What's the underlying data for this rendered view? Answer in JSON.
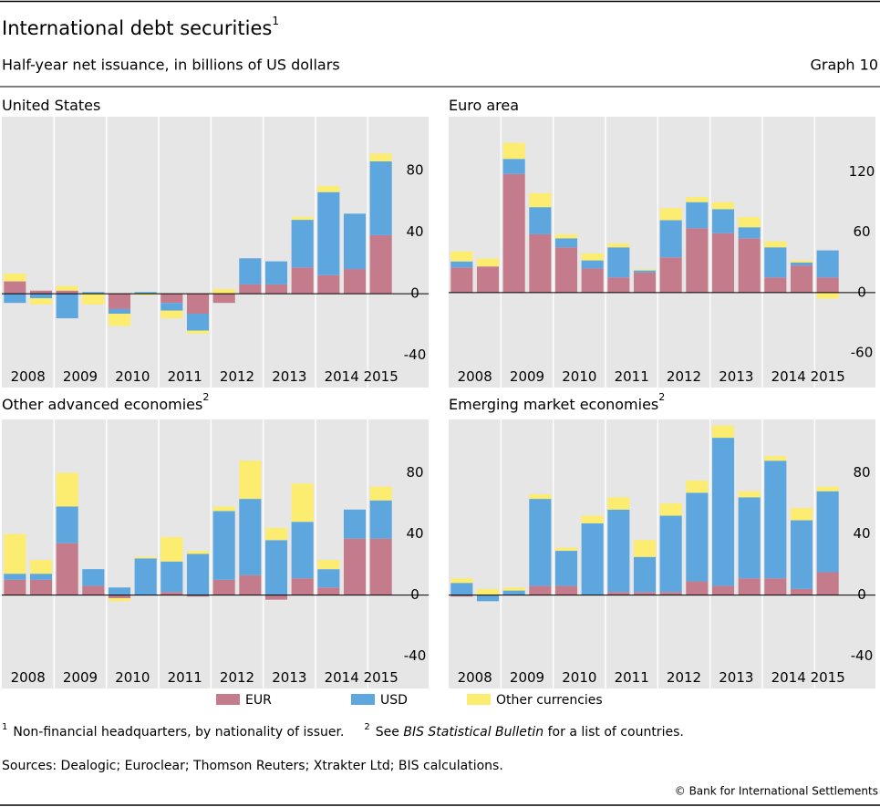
{
  "header": {
    "title": "International debt securities",
    "title_note": "1",
    "subtitle": "Half-year net issuance, in billions of US dollars",
    "graph_label": "Graph 10"
  },
  "chart_data": [
    {
      "type": "bar",
      "stacked": true,
      "title": "United States",
      "categories": [
        "2008",
        null,
        "2009",
        null,
        "2010",
        null,
        "2011",
        null,
        "2012",
        null,
        "2013",
        null,
        "2014",
        null,
        "2015"
      ],
      "series": [
        {
          "name": "EUR",
          "color": "#c47b8c",
          "values": [
            8,
            2,
            2,
            0,
            -10,
            0,
            -6,
            -13,
            -6,
            6,
            6,
            17,
            12,
            16,
            38
          ]
        },
        {
          "name": "USD",
          "color": "#5ea6de",
          "values": [
            -6,
            -3,
            -16,
            1,
            -3,
            1,
            -5,
            -11,
            0,
            17,
            15,
            31,
            54,
            36,
            48
          ]
        },
        {
          "name": "Other currencies",
          "color": "#fcec70",
          "values": [
            5,
            -4,
            3,
            -7,
            -8,
            -1,
            -5,
            -2,
            3,
            0,
            0,
            2,
            4,
            0,
            5
          ]
        }
      ],
      "ylim": [
        -45,
        115
      ],
      "yticks": [
        -40,
        0,
        40,
        80
      ]
    },
    {
      "type": "bar",
      "stacked": true,
      "title": "Euro area",
      "categories": [
        "2008",
        null,
        "2009",
        null,
        "2010",
        null,
        "2011",
        null,
        "2012",
        null,
        "2013",
        null,
        "2014",
        null,
        "2015"
      ],
      "series": [
        {
          "name": "EUR",
          "color": "#c47b8c",
          "values": [
            25,
            26,
            118,
            58,
            45,
            24,
            15,
            20,
            35,
            64,
            59,
            54,
            15,
            27,
            15
          ]
        },
        {
          "name": "USD",
          "color": "#5ea6de",
          "values": [
            6,
            0,
            15,
            27,
            9,
            8,
            30,
            2,
            37,
            26,
            24,
            11,
            30,
            3,
            27
          ]
        },
        {
          "name": "Other currencies",
          "color": "#fcec70",
          "values": [
            10,
            8,
            16,
            14,
            4,
            7,
            4,
            1,
            12,
            5,
            7,
            10,
            6,
            2,
            -6
          ]
        }
      ],
      "ylim": [
        -70,
        175
      ],
      "yticks": [
        -60,
        0,
        60,
        120
      ]
    },
    {
      "type": "bar",
      "stacked": true,
      "title": "Other advanced economies",
      "title_note": "2",
      "categories": [
        "2008",
        null,
        "2009",
        null,
        "2010",
        null,
        "2011",
        null,
        "2012",
        null,
        "2013",
        null,
        "2014",
        null,
        "2015"
      ],
      "series": [
        {
          "name": "EUR",
          "color": "#c47b8c",
          "values": [
            10,
            10,
            34,
            6,
            -2,
            0,
            2,
            -1,
            10,
            13,
            -3,
            11,
            5,
            37,
            37
          ]
        },
        {
          "name": "USD",
          "color": "#5ea6de",
          "values": [
            4,
            4,
            24,
            11,
            5,
            24,
            20,
            27,
            45,
            50,
            36,
            37,
            12,
            19,
            25
          ]
        },
        {
          "name": "Other currencies",
          "color": "#fcec70",
          "values": [
            26,
            9,
            22,
            0,
            -2,
            1,
            16,
            2,
            3,
            25,
            8,
            25,
            6,
            0,
            9
          ]
        }
      ],
      "ylim": [
        -45,
        115
      ],
      "yticks": [
        -40,
        0,
        40,
        80
      ]
    },
    {
      "type": "bar",
      "stacked": true,
      "title": "Emerging market economies",
      "title_note": "2",
      "categories": [
        "2008",
        null,
        "2009",
        null,
        "2010",
        null,
        "2011",
        null,
        "2012",
        null,
        "2013",
        null,
        "2014",
        null,
        "2015"
      ],
      "series": [
        {
          "name": "EUR",
          "color": "#c47b8c",
          "values": [
            -1,
            0,
            0,
            6,
            6,
            0,
            2,
            2,
            2,
            9,
            6,
            11,
            11,
            4,
            15
          ]
        },
        {
          "name": "USD",
          "color": "#5ea6de",
          "values": [
            8,
            -4,
            3,
            57,
            23,
            47,
            54,
            23,
            50,
            58,
            97,
            53,
            77,
            45,
            53
          ]
        },
        {
          "name": "Other currencies",
          "color": "#fcec70",
          "values": [
            3,
            4,
            2,
            3,
            2,
            5,
            8,
            11,
            8,
            8,
            8,
            4,
            3,
            8,
            3
          ]
        }
      ],
      "ylim": [
        -45,
        115
      ],
      "yticks": [
        -40,
        0,
        40,
        80
      ]
    }
  ],
  "footnotes": [
    {
      "marker": "1",
      "text": "Non-financial headquarters, by nationality of issuer."
    },
    {
      "marker": "2",
      "before": "See ",
      "italic": "BIS Statistical Bulletin",
      "after": " for a list of countries."
    }
  ],
  "sources": "Sources: Dealogic; Euroclear; Thomson Reuters; Xtrakter Ltd; BIS calculations.",
  "copyright": "© Bank for International Settlements"
}
